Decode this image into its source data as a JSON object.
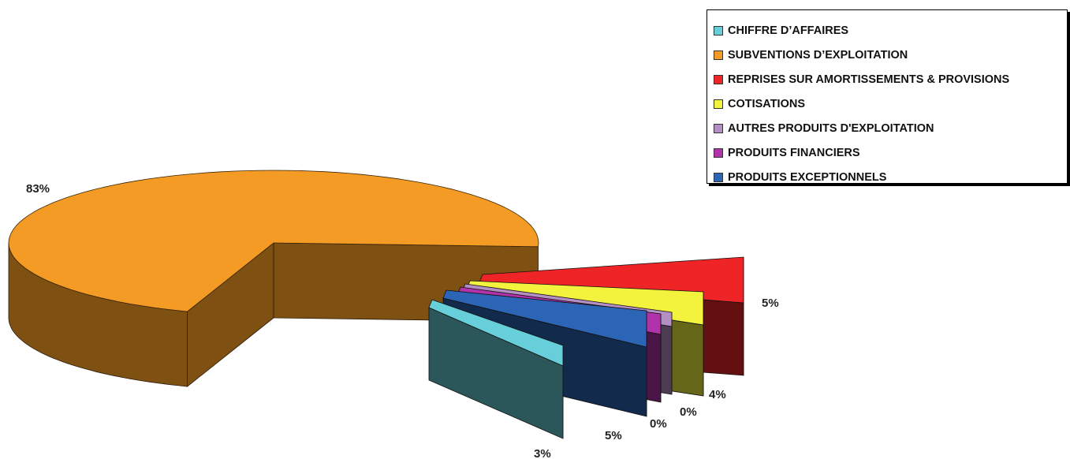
{
  "chart_data": {
    "type": "pie",
    "legend_position": "top-right",
    "slices": [
      {
        "name": "CHIFFRE D’AFFAIRES",
        "value": 3,
        "label": "3%",
        "color": "#67cfd9"
      },
      {
        "name": "SUBVENTIONS D’EXPLOITATION",
        "value": 83,
        "label": "83%",
        "color": "#f39b24"
      },
      {
        "name": "REPRISES SUR AMORTISSEMENTS & PROVISIONS",
        "value": 5,
        "label": "5%",
        "color": "#ee2427"
      },
      {
        "name": "COTISATIONS",
        "value": 4,
        "label": "4%",
        "color": "#f3f23c"
      },
      {
        "name": "AUTRES PRODUITS D'EXPLOITATION",
        "value": 0,
        "label": "0%",
        "color": "#b48fc4"
      },
      {
        "name": "PRODUITS FINANCIERS",
        "value": 0,
        "label": "0%",
        "color": "#b133a9"
      },
      {
        "name": "PRODUITS EXCEPTIONNELS",
        "value": 5,
        "label": "5%",
        "color": "#2c65b6"
      }
    ]
  }
}
